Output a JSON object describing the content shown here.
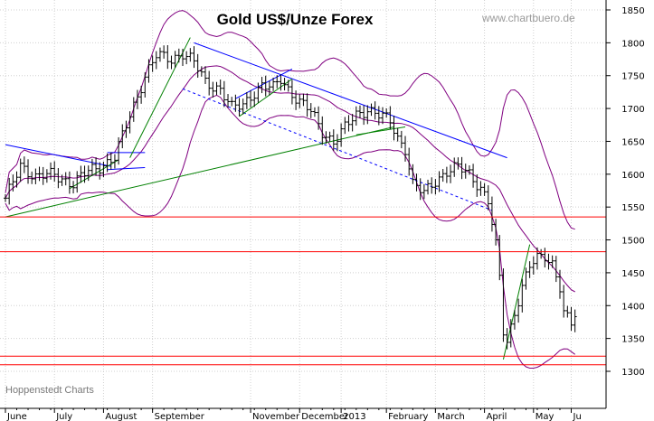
{
  "chart_data": {
    "type": "line",
    "subtype": "ohlc-bar",
    "title": "Gold US$/Unze Forex",
    "watermark": "www.chartbuero.de",
    "credit": "Hoppenstedt Charts",
    "ylim": [
      1290,
      1860
    ],
    "y_ticks": [
      1300,
      1350,
      1400,
      1450,
      1500,
      1550,
      1600,
      1650,
      1700,
      1750,
      1800,
      1850
    ],
    "y_axis_side": "right",
    "grid": true,
    "x_ticks": [
      "June",
      "July",
      "August",
      "September",
      "November",
      "December",
      "2013",
      "February",
      "March",
      "April",
      "May",
      "Ju"
    ],
    "x_tick_index": [
      0,
      13,
      26,
      39,
      65,
      78,
      89,
      101,
      114,
      127,
      140,
      150
    ],
    "n_days": 152,
    "price_path": [
      [
        0,
        1560
      ],
      [
        4,
        1615
      ],
      [
        8,
        1595
      ],
      [
        13,
        1600
      ],
      [
        18,
        1585
      ],
      [
        22,
        1605
      ],
      [
        26,
        1615
      ],
      [
        29,
        1625
      ],
      [
        33,
        1690
      ],
      [
        37,
        1750
      ],
      [
        40,
        1780
      ],
      [
        44,
        1775
      ],
      [
        47,
        1785
      ],
      [
        50,
        1770
      ],
      [
        53,
        1740
      ],
      [
        57,
        1730
      ],
      [
        60,
        1700
      ],
      [
        63,
        1705
      ],
      [
        65,
        1720
      ],
      [
        68,
        1735
      ],
      [
        71,
        1730
      ],
      [
        73,
        1745
      ],
      [
        75,
        1730
      ],
      [
        78,
        1710
      ],
      [
        81,
        1695
      ],
      [
        84,
        1665
      ],
      [
        87,
        1650
      ],
      [
        90,
        1670
      ],
      [
        93,
        1690
      ],
      [
        96,
        1700
      ],
      [
        99,
        1690
      ],
      [
        102,
        1680
      ],
      [
        104,
        1655
      ],
      [
        106,
        1640
      ],
      [
        108,
        1585
      ],
      [
        111,
        1570
      ],
      [
        114,
        1590
      ],
      [
        117,
        1605
      ],
      [
        120,
        1610
      ],
      [
        123,
        1600
      ],
      [
        126,
        1580
      ],
      [
        128,
        1560
      ],
      [
        130,
        1490
      ],
      [
        131,
        1440
      ],
      [
        132,
        1360
      ],
      [
        133,
        1345
      ],
      [
        135,
        1390
      ],
      [
        137,
        1430
      ],
      [
        139,
        1460
      ],
      [
        141,
        1470
      ],
      [
        143,
        1475
      ],
      [
        145,
        1465
      ],
      [
        147,
        1430
      ],
      [
        148,
        1390
      ],
      [
        150,
        1370
      ],
      [
        151,
        1385
      ]
    ],
    "series": [
      {
        "role": "price",
        "color": "#000000"
      },
      {
        "role": "upper-band",
        "color": "#800080"
      },
      {
        "role": "lower-band",
        "color": "#800080"
      },
      {
        "role": "moving-average",
        "color": "#800080"
      }
    ],
    "horizontal_lines": [
      {
        "value": 1535,
        "color": "#ff0000"
      },
      {
        "value": 1482,
        "color": "#ff0000"
      },
      {
        "value": 1323,
        "color": "#ff0000"
      },
      {
        "value": 1310,
        "color": "#ff0000"
      }
    ],
    "trendlines": [
      {
        "color": "#0000ff",
        "dashed": false,
        "points": [
          [
            0,
            1645
          ],
          [
            28,
            1612
          ]
        ]
      },
      {
        "color": "#0000ff",
        "dashed": false,
        "points": [
          [
            27,
            1633
          ],
          [
            37,
            1633
          ]
        ]
      },
      {
        "color": "#0000ff",
        "dashed": false,
        "points": [
          [
            27,
            1607
          ],
          [
            37,
            1610
          ]
        ]
      },
      {
        "color": "#0000ff",
        "dashed": false,
        "points": [
          [
            50,
            1800
          ],
          [
            133,
            1625
          ]
        ]
      },
      {
        "color": "#0000ff",
        "dashed": true,
        "points": [
          [
            47,
            1730
          ],
          [
            129,
            1545
          ]
        ]
      },
      {
        "color": "#0000ff",
        "dashed": false,
        "points": [
          [
            61,
            1715
          ],
          [
            76,
            1760
          ]
        ]
      },
      {
        "color": "#008000",
        "dashed": false,
        "points": [
          [
            0,
            1535
          ],
          [
            103,
            1672
          ]
        ]
      },
      {
        "color": "#008000",
        "dashed": false,
        "points": [
          [
            33,
            1625
          ],
          [
            49,
            1808
          ]
        ]
      },
      {
        "color": "#008000",
        "dashed": false,
        "points": [
          [
            62,
            1688
          ],
          [
            76,
            1745
          ]
        ]
      },
      {
        "color": "#008000",
        "dashed": false,
        "points": [
          [
            93,
            1660
          ],
          [
            106,
            1672
          ]
        ]
      },
      {
        "color": "#008000",
        "dashed": false,
        "points": [
          [
            132,
            1318
          ],
          [
            139,
            1493
          ]
        ]
      },
      {
        "color": "#008000",
        "dashed": false,
        "points": [
          [
            17,
            1578
          ],
          [
            30,
            1622
          ]
        ]
      }
    ]
  }
}
